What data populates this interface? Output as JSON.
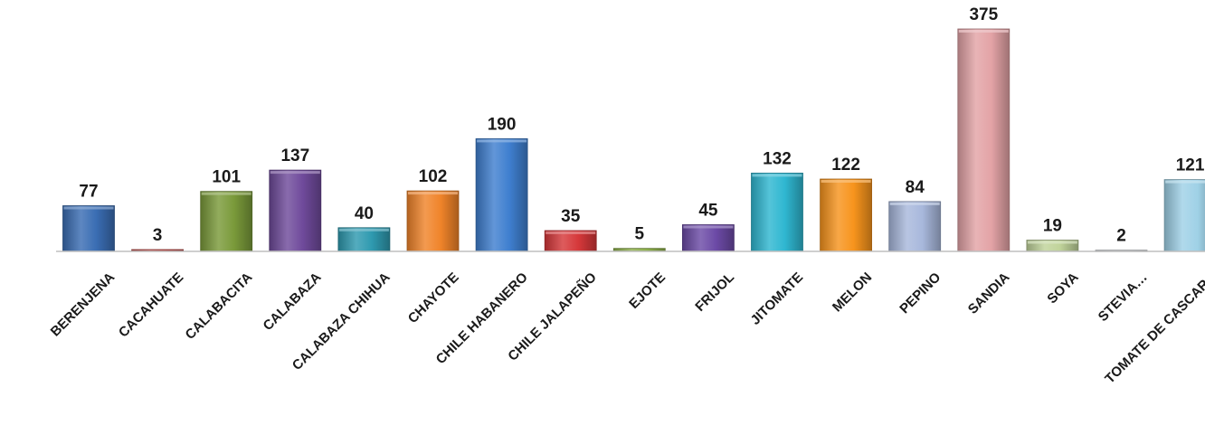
{
  "chart_data": {
    "type": "bar",
    "title": "",
    "xlabel": "",
    "ylabel": "",
    "grid": false,
    "legend": "none",
    "ylim": [
      0,
      375
    ],
    "categories": [
      "BERENJENA",
      "CACAHUATE",
      "CALABACITA",
      "CALABAZA",
      "CALABAZA CHIHUA",
      "CHAYOTE",
      "CHILE HABANERO",
      "CHILE JALAPEÑO",
      "EJOTE",
      "FRIJOL",
      "JITOMATE",
      "MELON",
      "PEPINO",
      "SANDIA",
      "SOYA",
      "STEVIA…",
      "TOMATE DE CASCARA"
    ],
    "values": [
      77,
      3,
      101,
      137,
      40,
      102,
      190,
      35,
      5,
      45,
      132,
      122,
      84,
      375,
      19,
      2,
      121
    ],
    "bar_colors": [
      "#3a6db3",
      "#c0504d",
      "#7a9a3a",
      "#6f4a9b",
      "#2f9ab0",
      "#f0842a",
      "#3f7fcf",
      "#d6383a",
      "#8db04a",
      "#6c4aa6",
      "#2fb7d1",
      "#f7941d",
      "#a8b8dc",
      "#e3a3a6",
      "#c0d39a",
      "#c7c9cf",
      "#9fd1e6"
    ]
  }
}
